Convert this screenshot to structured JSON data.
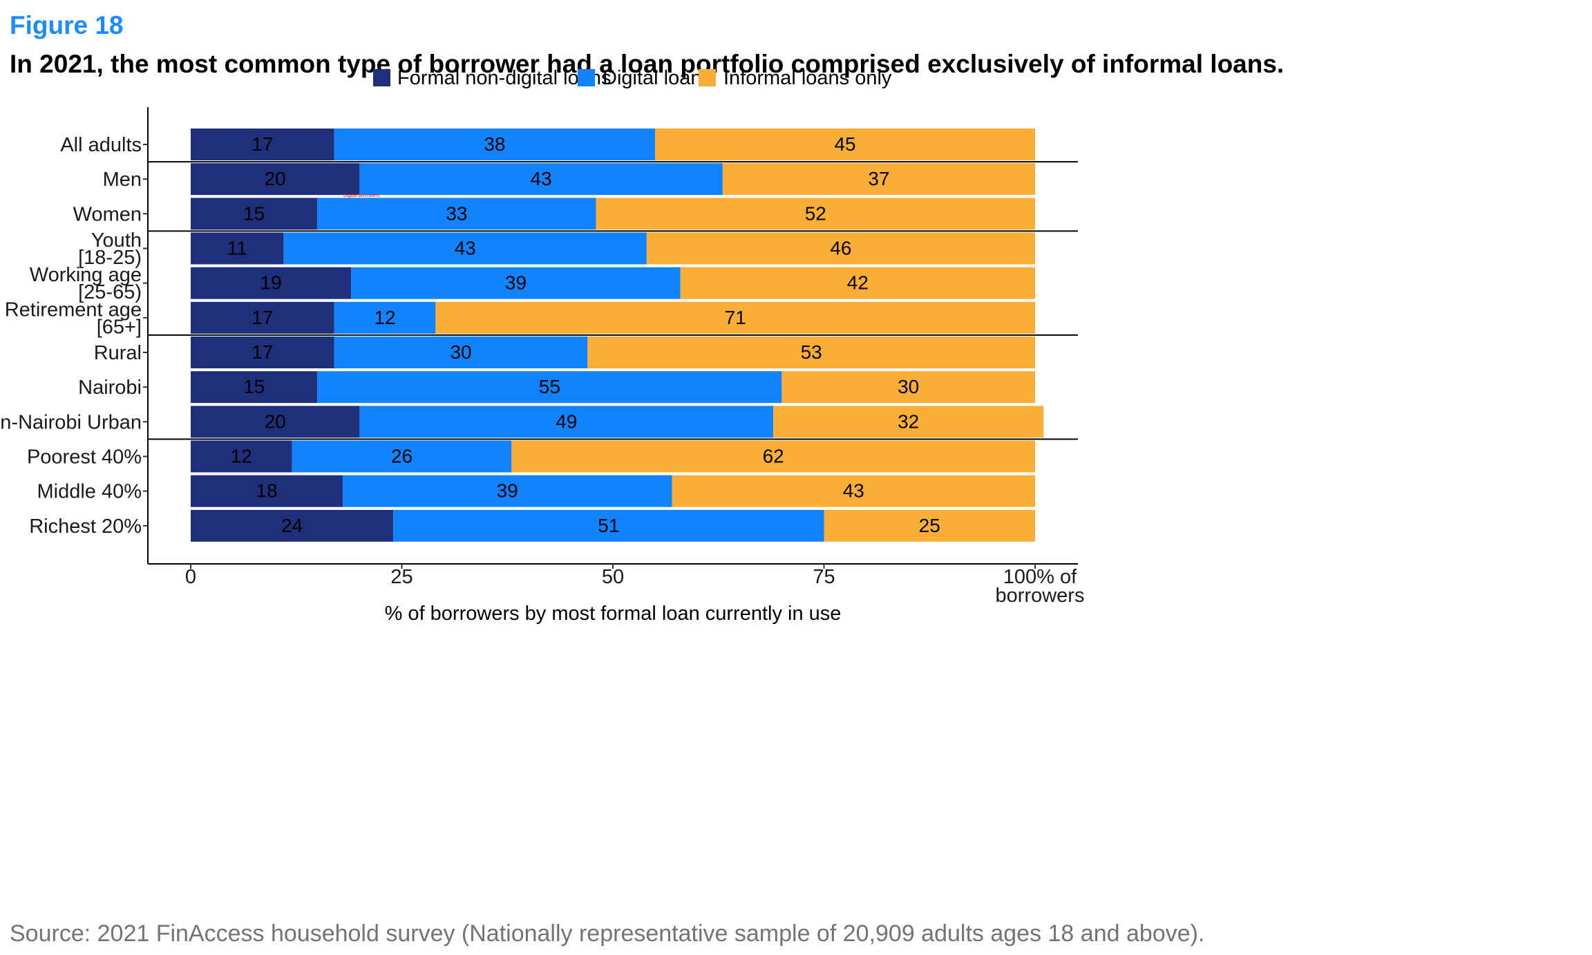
{
  "figure_label": "Figure 18",
  "title": "In 2021, the most common type of borrower had a loan portfolio comprised exclusively of informal loans.",
  "source": "Source: 2021 FinAccess household survey (Nationally representative sample of 20,909 adults ages 18 and above).",
  "colors": {
    "formal": "#1f2f7a",
    "digital": "#1283ff",
    "informal": "#fbae36"
  },
  "stray_annotation": "Digital borrowers",
  "chart_data": {
    "type": "bar",
    "orientation": "horizontal",
    "stacked": true,
    "categories": [
      [
        "All adults"
      ],
      [
        "Men"
      ],
      [
        "Women"
      ],
      [
        "Youth",
        "[18-25)"
      ],
      [
        "Working age",
        "[25-65)"
      ],
      [
        "Retirement age",
        "[65+]"
      ],
      [
        "Rural"
      ],
      [
        "Nairobi"
      ],
      [
        "Non-Nairobi Urban"
      ],
      [
        "Poorest 40%"
      ],
      [
        "Middle 40%"
      ],
      [
        "Richest 20%"
      ]
    ],
    "series": [
      {
        "name": "Formal non-digital loans",
        "color": "#1f2f7a",
        "values": [
          17,
          20,
          15,
          11,
          19,
          17,
          17,
          15,
          20,
          12,
          18,
          24
        ]
      },
      {
        "name": "Digital loans",
        "color": "#1283ff",
        "values": [
          38,
          43,
          33,
          43,
          39,
          12,
          30,
          55,
          49,
          26,
          39,
          51
        ]
      },
      {
        "name": "Informal loans only",
        "color": "#fbae36",
        "values": [
          45,
          37,
          52,
          46,
          42,
          71,
          53,
          30,
          32,
          62,
          43,
          25
        ]
      }
    ],
    "group_separators_after": [
      0,
      2,
      5,
      8
    ],
    "xlabel": "% of borrowers by most formal loan currently in use",
    "xticks": [
      {
        "value": 0,
        "label": [
          "0"
        ]
      },
      {
        "value": 25,
        "label": [
          "25"
        ]
      },
      {
        "value": 50,
        "label": [
          "50"
        ]
      },
      {
        "value": 75,
        "label": [
          "75"
        ]
      },
      {
        "value": 100,
        "label": [
          "100% of",
          "borrowers"
        ]
      }
    ],
    "xlim": [
      0,
      100
    ],
    "legend_position": "top"
  }
}
